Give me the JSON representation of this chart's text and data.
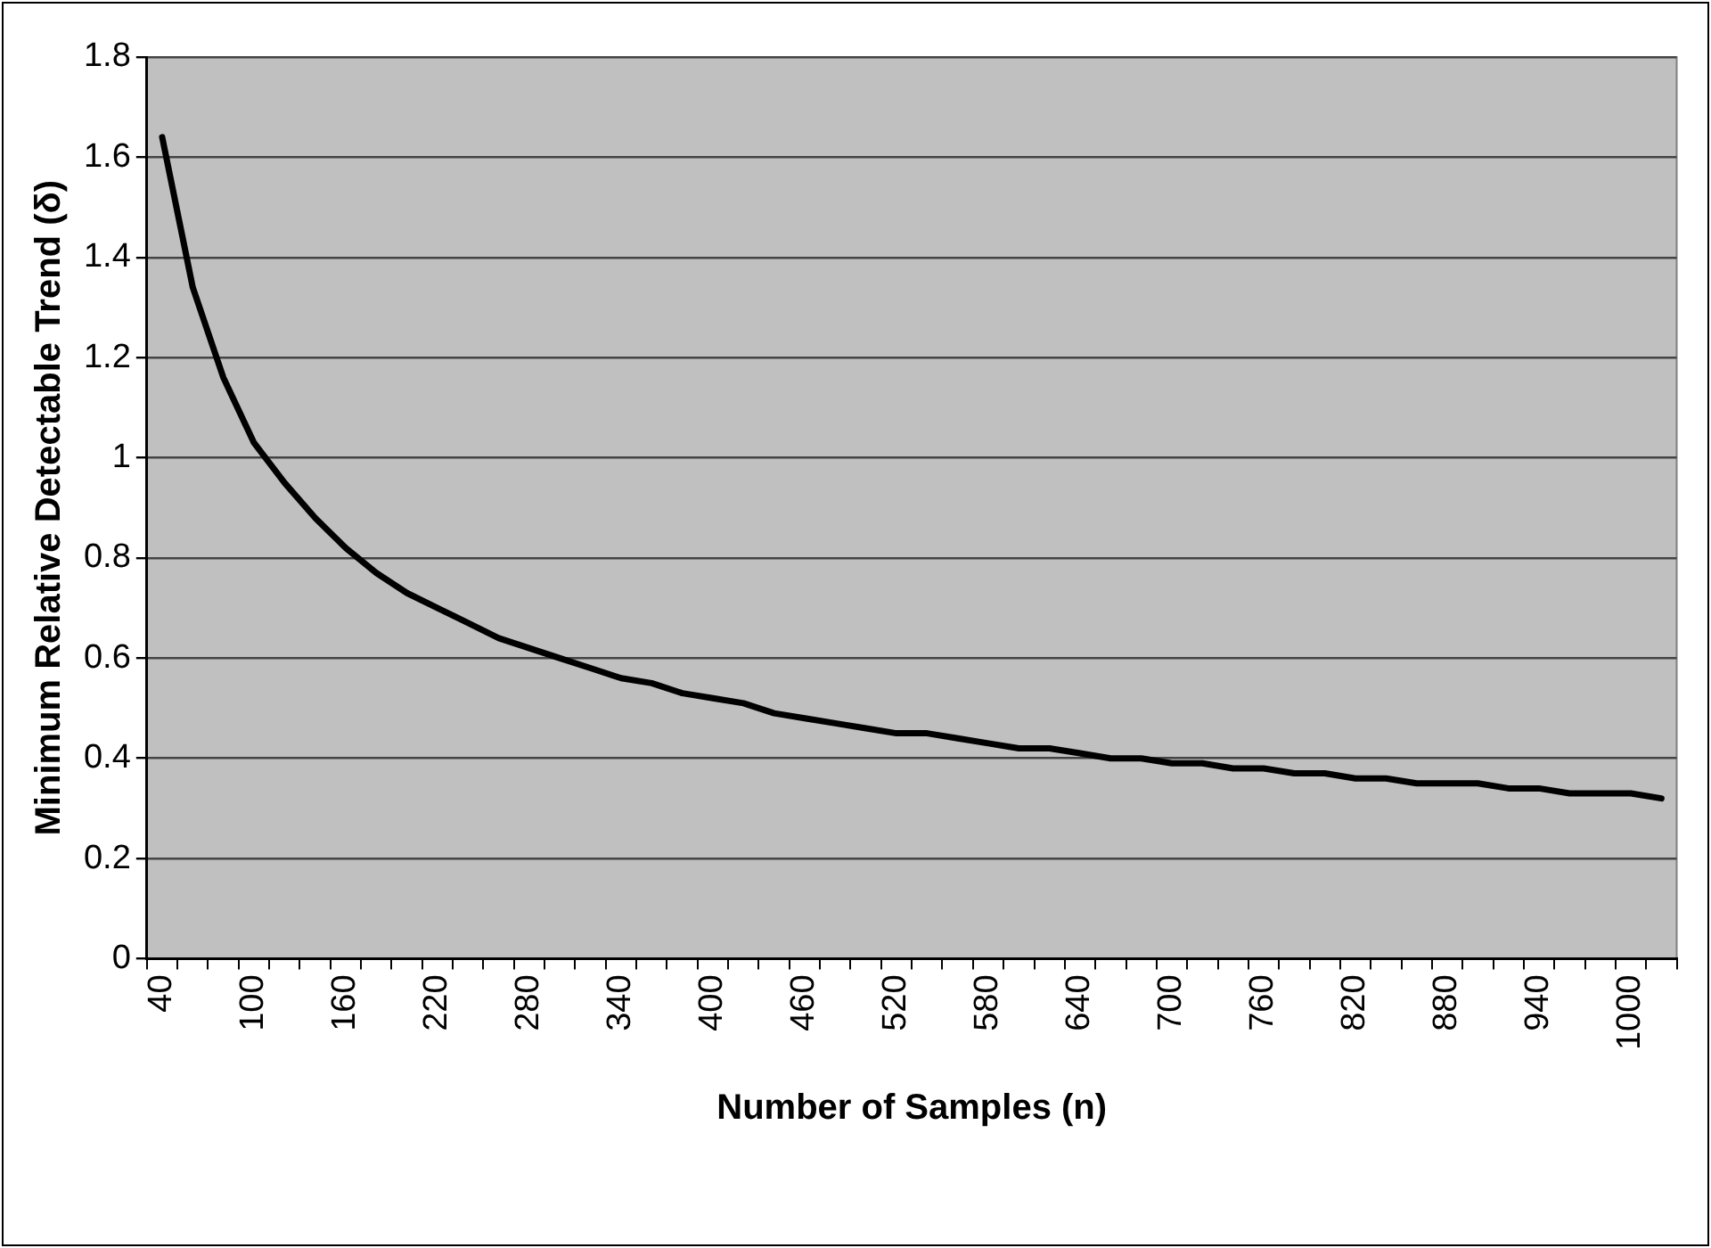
{
  "chart_data": {
    "type": "line",
    "xlabel": "Number of Samples (n)",
    "ylabel": "Minimum Relative Detectable Trend (δ)",
    "categories": [
      "40",
      null,
      null,
      "100",
      null,
      null,
      "160",
      null,
      null,
      "220",
      null,
      null,
      "280",
      null,
      null,
      "340",
      null,
      null,
      "400",
      null,
      null,
      "460",
      null,
      null,
      "520",
      null,
      null,
      "580",
      null,
      null,
      "640",
      null,
      null,
      "700",
      null,
      null,
      "760",
      null,
      null,
      "820",
      null,
      null,
      "880",
      null,
      null,
      "940",
      null,
      null,
      "1000",
      null
    ],
    "series": [
      {
        "color": "#000000",
        "values": [
          1.64,
          1.34,
          1.16,
          1.03,
          0.95,
          0.88,
          0.82,
          0.77,
          0.73,
          0.7,
          0.67,
          0.64,
          0.62,
          0.6,
          0.58,
          0.56,
          0.55,
          0.53,
          0.52,
          0.51,
          0.49,
          0.48,
          0.47,
          0.46,
          0.45,
          0.45,
          0.44,
          0.43,
          0.42,
          0.42,
          0.41,
          0.4,
          0.4,
          0.39,
          0.39,
          0.38,
          0.38,
          0.37,
          0.37,
          0.36,
          0.36,
          0.35,
          0.35,
          0.35,
          0.34,
          0.34,
          0.33,
          0.33,
          0.33,
          0.32
        ]
      }
    ],
    "ylim": [
      0,
      1.8
    ],
    "yticks": [
      0,
      0.2,
      0.4,
      0.6,
      0.8,
      1,
      1.2,
      1.4,
      1.6,
      1.8
    ],
    "grid": "y",
    "legend": false,
    "marker": "none",
    "line_style": "solid"
  }
}
